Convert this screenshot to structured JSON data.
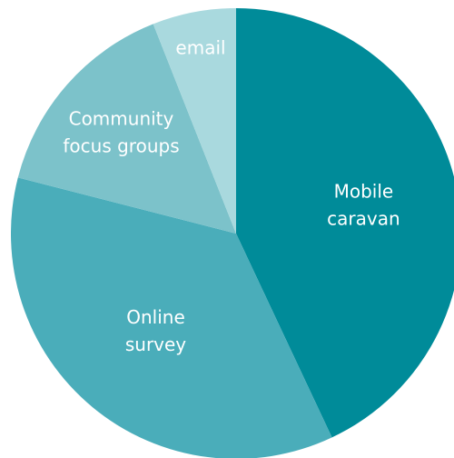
{
  "chart_data": {
    "type": "pie",
    "title": "",
    "start_angle_deg": 0,
    "direction": "clockwise",
    "legend": "none",
    "slices": [
      {
        "label": [
          "Mobile",
          "caravan"
        ],
        "value": 43,
        "color": "#008b99"
      },
      {
        "label": [
          "Online",
          "survey"
        ],
        "value": 36,
        "color": "#4aadba"
      },
      {
        "label": [
          "Community",
          "focus groups"
        ],
        "value": 15,
        "color": "#7cc2ca"
      },
      {
        "label": [
          "email"
        ],
        "value": 6,
        "color": "#a9d9de"
      }
    ]
  }
}
